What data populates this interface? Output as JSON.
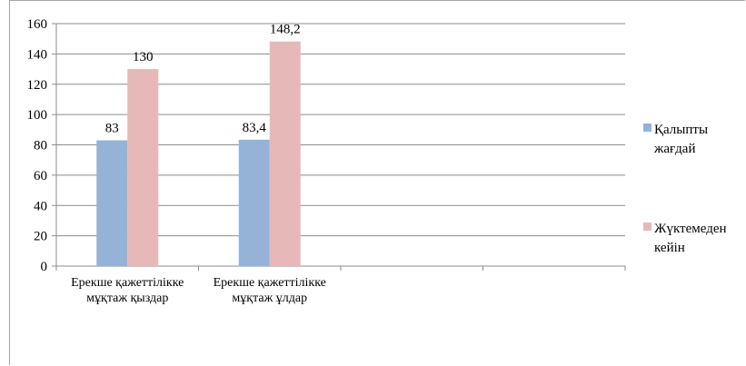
{
  "chart_data": {
    "type": "bar",
    "categories": [
      [
        "Ерекше қажеттілікке",
        "мұқтаж қыздар"
      ],
      [
        "Ерекше қажеттілікке",
        "мұқтаж ұлдар"
      ]
    ],
    "series": [
      {
        "name": [
          "Қалыпты",
          "жағдай"
        ],
        "values": [
          83,
          83.4
        ],
        "labels": [
          "83",
          "83,4"
        ],
        "color": "#95b3d7"
      },
      {
        "name": [
          "Жүктемеден",
          "кейін"
        ],
        "values": [
          130,
          148.2
        ],
        "labels": [
          "130",
          "148,2"
        ],
        "color": "#e6b9b8"
      }
    ],
    "y_ticks": [
      "0",
      "20",
      "40",
      "60",
      "80",
      "100",
      "120",
      "140",
      "160"
    ],
    "ylim": [
      0,
      160
    ],
    "grid": true,
    "legend": "right"
  }
}
